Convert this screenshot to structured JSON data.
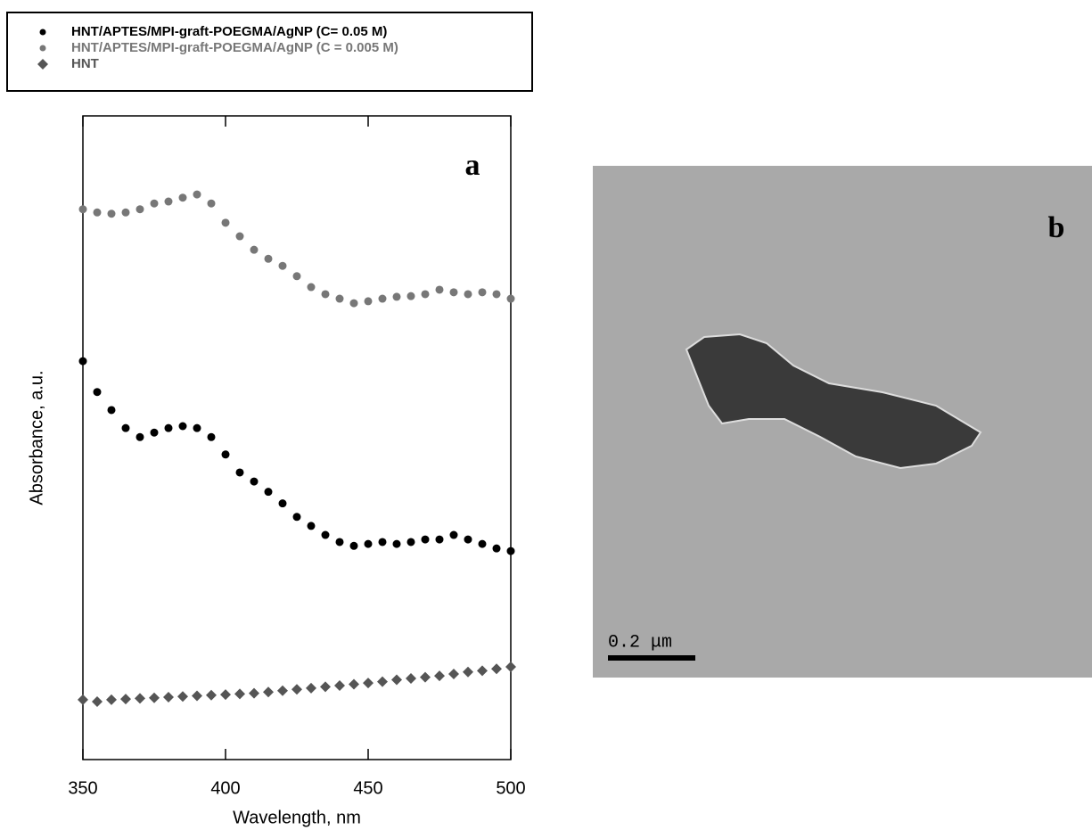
{
  "chart_data": {
    "type": "scatter",
    "panel_label": "a",
    "x_label": "Wavelength, nm",
    "y_label": "Absorbance, a.u.",
    "x": [
      350,
      355,
      360,
      365,
      370,
      375,
      380,
      385,
      390,
      395,
      400,
      405,
      410,
      415,
      420,
      425,
      430,
      435,
      440,
      445,
      450,
      455,
      460,
      465,
      470,
      475,
      480,
      485,
      490,
      495,
      500
    ],
    "series": [
      {
        "name": "HNT/APTES/MPI-graft-POEGMA/AgNP (C= 0.05 M)",
        "color": "#000000",
        "marker": "circle",
        "values": [
          61.9,
          57.1,
          54.3,
          51.5,
          50.1,
          50.8,
          51.5,
          51.8,
          51.5,
          50.1,
          47.4,
          44.6,
          43.2,
          41.6,
          39.8,
          37.7,
          36.3,
          34.9,
          33.8,
          33.2,
          33.5,
          33.8,
          33.5,
          33.8,
          34.2,
          34.2,
          34.9,
          34.2,
          33.5,
          32.8,
          32.4
        ]
      },
      {
        "name": "HNT/APTES/MPI-graft-POEGMA/AgNP (C = 0.005 M)",
        "color": "#777777",
        "marker": "circle",
        "values": [
          85.5,
          85.0,
          84.8,
          85.0,
          85.5,
          86.4,
          86.7,
          87.3,
          87.8,
          86.4,
          83.4,
          81.3,
          79.2,
          77.8,
          76.7,
          75.1,
          73.4,
          72.3,
          71.6,
          70.9,
          71.2,
          71.6,
          71.9,
          72.0,
          72.3,
          73.0,
          72.6,
          72.3,
          72.6,
          72.3,
          71.6
        ]
      },
      {
        "name": "HNT",
        "color": "#555555",
        "marker": "diamond",
        "values": [
          9.3,
          9.0,
          9.3,
          9.4,
          9.5,
          9.6,
          9.7,
          9.8,
          9.9,
          10.0,
          10.1,
          10.2,
          10.3,
          10.5,
          10.7,
          10.9,
          11.1,
          11.3,
          11.5,
          11.7,
          11.9,
          12.1,
          12.4,
          12.6,
          12.8,
          13.0,
          13.3,
          13.6,
          13.8,
          14.1,
          14.4
        ]
      }
    ],
    "xlim": [
      350,
      500
    ],
    "xticks": [
      350,
      400,
      450,
      500
    ],
    "ylim": [
      0,
      100
    ],
    "grid": false
  },
  "image": {
    "panel_label": "b",
    "scale_bar": "0.2 μm"
  }
}
